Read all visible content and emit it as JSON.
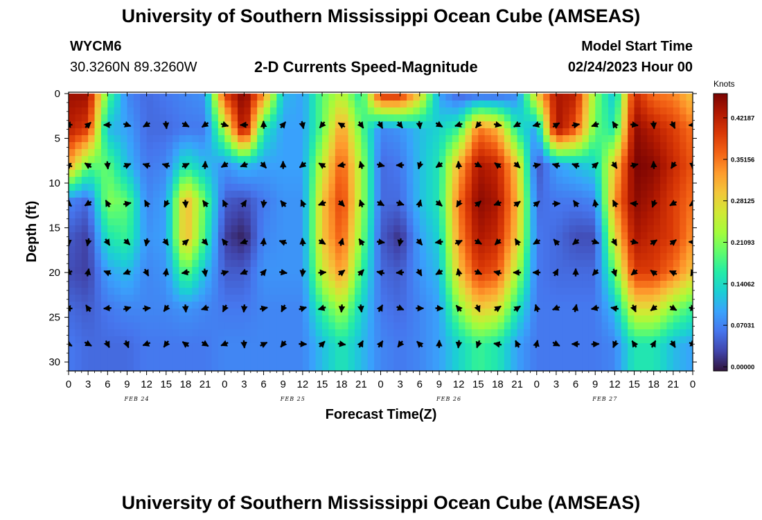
{
  "header": {
    "title": "University of Southern Mississippi Ocean Cube (AMSEAS)",
    "station_id": "WYCM6",
    "station_coords": "30.3260N  89.3260W",
    "subtitle": "2-D Currents Speed-Magnitude",
    "model_start_label": "Model Start Time",
    "model_start_value": "02/24/2023 Hour 00"
  },
  "footer": {
    "title": "University of Southern Mississippi Ocean Cube (AMSEAS)"
  },
  "colors": {
    "scale": [
      "#30123b",
      "#4145ab",
      "#4675ed",
      "#39a2fc",
      "#1bcfd4",
      "#24eca6",
      "#61fc6c",
      "#a4fc3b",
      "#d1e834",
      "#f3c63a",
      "#fe9b2d",
      "#f36315",
      "#d93806",
      "#b11901",
      "#7a0403"
    ]
  },
  "chart_data": {
    "type": "heatmap",
    "title": "2-D Currents Speed-Magnitude",
    "xlabel": "Forecast Time(Z)",
    "ylabel": "Depth (ft)",
    "x_tick_labels": [
      "0",
      "3",
      "6",
      "9",
      "12",
      "15",
      "18",
      "21",
      "0",
      "3",
      "6",
      "9",
      "12",
      "15",
      "18",
      "21",
      "0",
      "3",
      "6",
      "9",
      "12",
      "15",
      "18",
      "21",
      "0",
      "3",
      "6",
      "9",
      "12",
      "15",
      "18",
      "21",
      "0"
    ],
    "date_labels": [
      "FEB 24",
      "FEB 25",
      "FEB 26",
      "FEB 27"
    ],
    "y_tick_labels": [
      "0",
      "5",
      "10",
      "15",
      "20",
      "25",
      "30"
    ],
    "y_ticks": [
      0,
      5,
      10,
      15,
      20,
      25,
      30
    ],
    "ylim": [
      0,
      31
    ],
    "xlim": [
      0,
      96
    ],
    "colorbar": {
      "label": "Knots",
      "ticks": [
        "0.42187",
        "0.35156",
        "0.28125",
        "0.21093",
        "0.14062",
        "0.07031",
        "0.00000"
      ],
      "min": 0,
      "max": 0.47
    },
    "arrow_depths": [
      3.5,
      8.0,
      12.3,
      16.6,
      20.0,
      24.0,
      28.0
    ],
    "arrow_hours": [
      0,
      3,
      6,
      9,
      12,
      15,
      18,
      21,
      24,
      27,
      30,
      33,
      36,
      39,
      42,
      45,
      48,
      51,
      54,
      57,
      60,
      63,
      66,
      69,
      72,
      75,
      78,
      81,
      84,
      87,
      90,
      93,
      96
    ],
    "columns": [
      [
        0.45,
        0.43,
        0.33,
        0.08,
        0.05,
        0.04,
        0.06,
        0.07
      ],
      [
        0.45,
        0.4,
        0.2,
        0.06,
        0.03,
        0.03,
        0.05,
        0.06
      ],
      [
        0.2,
        0.12,
        0.2,
        0.22,
        0.16,
        0.1,
        0.07,
        0.06
      ],
      [
        0.08,
        0.1,
        0.12,
        0.2,
        0.18,
        0.12,
        0.08,
        0.06
      ],
      [
        0.06,
        0.06,
        0.07,
        0.08,
        0.09,
        0.08,
        0.08,
        0.07
      ],
      [
        0.07,
        0.06,
        0.08,
        0.1,
        0.1,
        0.09,
        0.08,
        0.07
      ],
      [
        0.08,
        0.07,
        0.16,
        0.32,
        0.32,
        0.2,
        0.09,
        0.07
      ],
      [
        0.09,
        0.07,
        0.12,
        0.2,
        0.18,
        0.12,
        0.08,
        0.07
      ],
      [
        0.4,
        0.24,
        0.09,
        0.05,
        0.03,
        0.05,
        0.07,
        0.08
      ],
      [
        0.47,
        0.46,
        0.12,
        0.04,
        0.01,
        0.05,
        0.07,
        0.08
      ],
      [
        0.35,
        0.16,
        0.1,
        0.07,
        0.08,
        0.09,
        0.08,
        0.08
      ],
      [
        0.12,
        0.1,
        0.1,
        0.09,
        0.09,
        0.09,
        0.08,
        0.08
      ],
      [
        0.1,
        0.1,
        0.1,
        0.09,
        0.09,
        0.09,
        0.08,
        0.08
      ],
      [
        0.2,
        0.2,
        0.26,
        0.3,
        0.3,
        0.26,
        0.18,
        0.12
      ],
      [
        0.25,
        0.34,
        0.38,
        0.4,
        0.38,
        0.34,
        0.24,
        0.16
      ],
      [
        0.16,
        0.2,
        0.24,
        0.24,
        0.22,
        0.18,
        0.14,
        0.12
      ],
      [
        0.42,
        0.08,
        0.06,
        0.06,
        0.05,
        0.06,
        0.07,
        0.08
      ],
      [
        0.42,
        0.09,
        0.07,
        0.06,
        0.02,
        0.05,
        0.06,
        0.07
      ],
      [
        0.3,
        0.12,
        0.12,
        0.12,
        0.1,
        0.09,
        0.08,
        0.08
      ],
      [
        0.1,
        0.14,
        0.16,
        0.16,
        0.14,
        0.12,
        0.1,
        0.1
      ],
      [
        0.05,
        0.18,
        0.32,
        0.36,
        0.34,
        0.3,
        0.22,
        0.14
      ],
      [
        0.05,
        0.36,
        0.44,
        0.46,
        0.44,
        0.4,
        0.3,
        0.18
      ],
      [
        0.05,
        0.32,
        0.42,
        0.44,
        0.42,
        0.38,
        0.28,
        0.16
      ],
      [
        0.08,
        0.16,
        0.3,
        0.32,
        0.3,
        0.24,
        0.16,
        0.1
      ],
      [
        0.3,
        0.1,
        0.04,
        0.06,
        0.07,
        0.07,
        0.07,
        0.07
      ],
      [
        0.44,
        0.45,
        0.1,
        0.07,
        0.06,
        0.06,
        0.07,
        0.07
      ],
      [
        0.43,
        0.38,
        0.12,
        0.07,
        0.04,
        0.06,
        0.07,
        0.07
      ],
      [
        0.22,
        0.2,
        0.14,
        0.08,
        0.04,
        0.06,
        0.07,
        0.07
      ],
      [
        0.12,
        0.16,
        0.3,
        0.34,
        0.28,
        0.2,
        0.12,
        0.08
      ],
      [
        0.42,
        0.46,
        0.47,
        0.46,
        0.44,
        0.4,
        0.28,
        0.16
      ],
      [
        0.36,
        0.43,
        0.46,
        0.44,
        0.42,
        0.4,
        0.28,
        0.16
      ],
      [
        0.35,
        0.4,
        0.42,
        0.4,
        0.4,
        0.36,
        0.22,
        0.12
      ],
      [
        0.3,
        0.36,
        0.38,
        0.36,
        0.34,
        0.3,
        0.18,
        0.1
      ]
    ]
  }
}
